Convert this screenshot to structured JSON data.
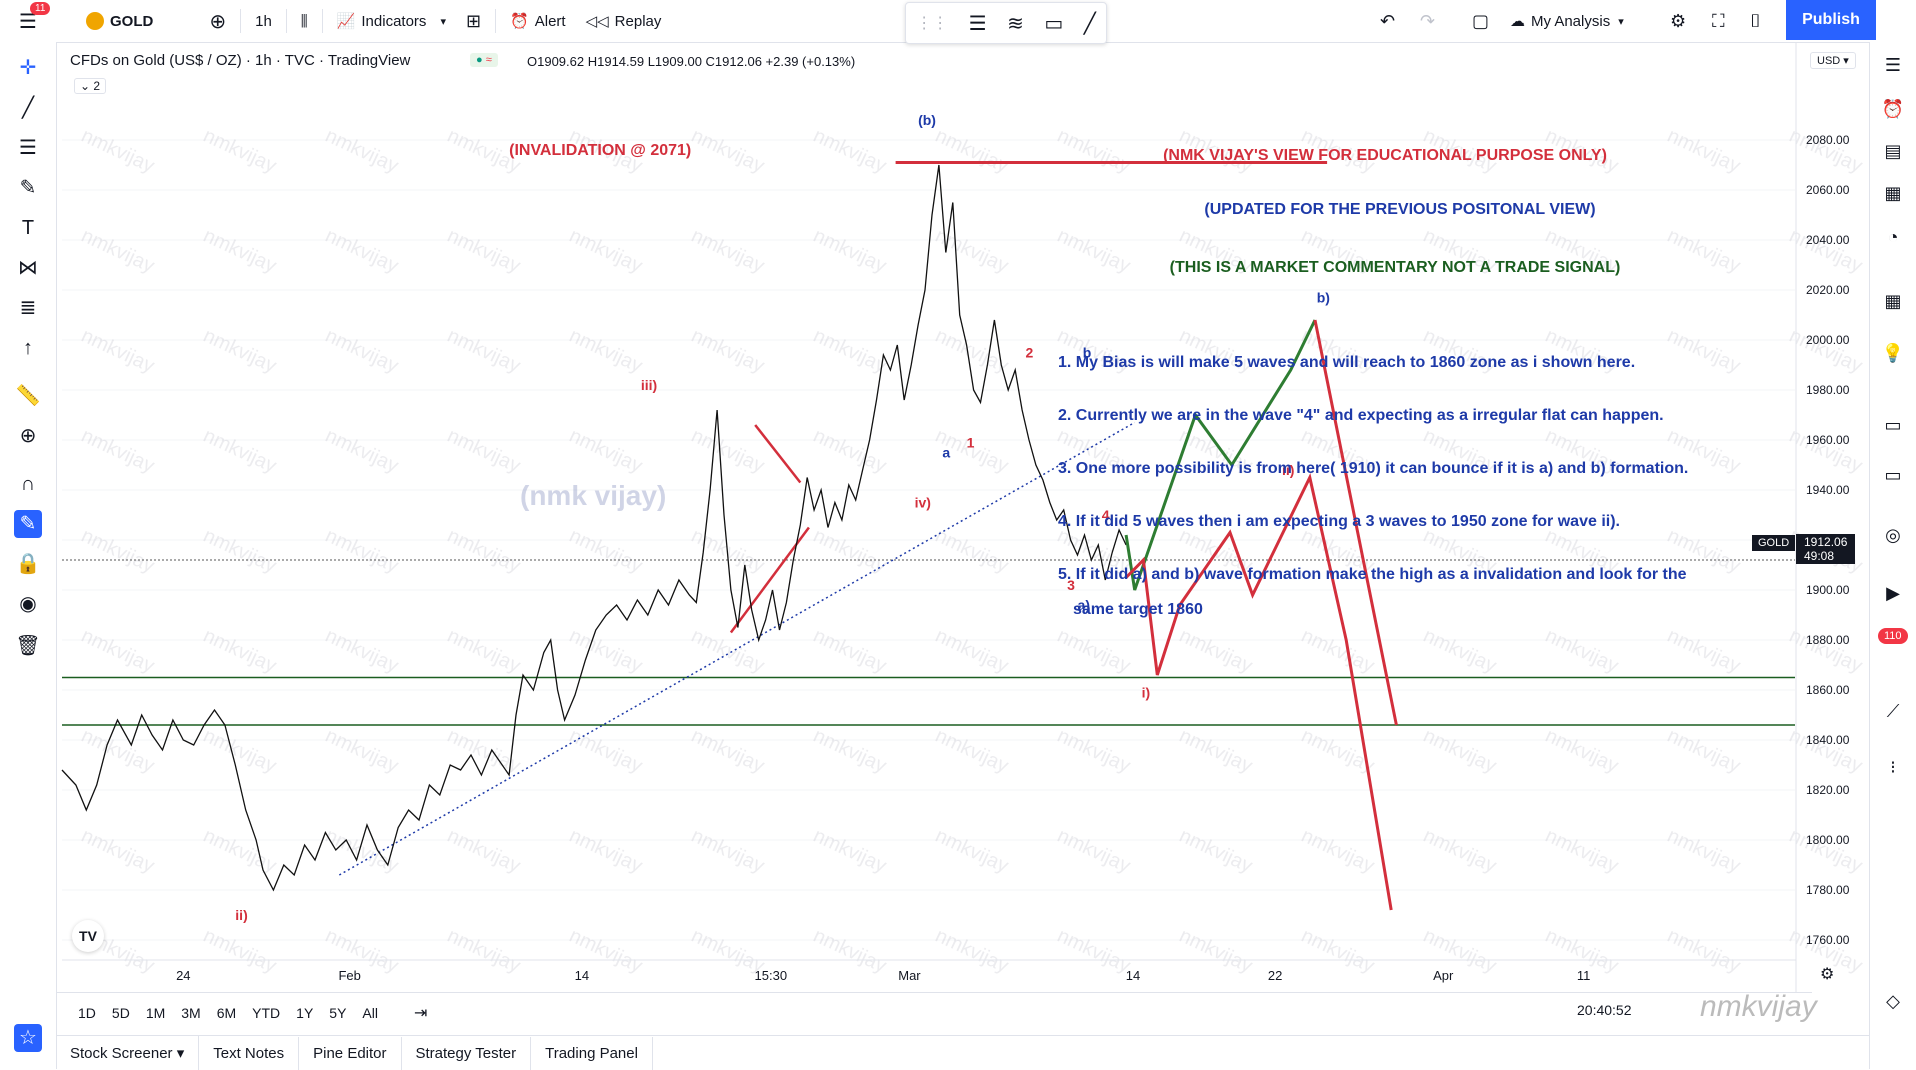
{
  "toolbar": {
    "symbol": "GOLD",
    "notif_count": "11",
    "interval": "1h",
    "indicators": "Indicators",
    "alert": "Alert",
    "replay": "Replay",
    "layout_name": "My Analysis",
    "publish": "Publish"
  },
  "legend": {
    "title": "CFDs on Gold (US$ / OZ) · 1h · TVC · TradingView",
    "ohlc": "O1909.62  H1914.59  L1909.00  C1912.06  +2.39 (+0.13%)",
    "collapse": "2"
  },
  "currency": "USD",
  "price_tag": {
    "symbol": "GOLD",
    "price": "1912.06",
    "countdown": "49:08"
  },
  "side_badge": "110",
  "range_buttons": [
    "1D",
    "5D",
    "1M",
    "3M",
    "6M",
    "YTD",
    "1Y",
    "5Y",
    "All"
  ],
  "clock": "20:40:52",
  "bottom_tabs": [
    "Stock Screener",
    "Text Notes",
    "Pine Editor",
    "Strategy Tester",
    "Trading Panel"
  ],
  "watermark": "(nmk vijay)",
  "signature": "nmkvijay",
  "colors": {
    "up_red": "#d32f3c",
    "green": "#2e7d32",
    "blue": "#1e3aa8",
    "axis_text": "#131722"
  },
  "chart_data": {
    "type": "line",
    "title": "CFDs on Gold (US$ / OZ) · 1h · TVC · TradingView",
    "ylim": [
      1750,
      2100
    ],
    "y_ticks": [
      2080,
      2060,
      2040,
      2020,
      2000,
      1980,
      1960,
      1940,
      1920,
      1900,
      1880,
      1860,
      1840,
      1820,
      1800,
      1780,
      1760
    ],
    "x_tick_labels": [
      {
        "label": "24",
        "x": 0.07
      },
      {
        "label": "Feb",
        "x": 0.166
      },
      {
        "label": "14",
        "x": 0.3
      },
      {
        "label": "15:30",
        "x": 0.409
      },
      {
        "label": "Mar",
        "x": 0.489
      },
      {
        "label": "14",
        "x": 0.618
      },
      {
        "label": "22",
        "x": 0.7
      },
      {
        "label": "Apr",
        "x": 0.797
      },
      {
        "label": "11",
        "x": 0.878
      }
    ],
    "horizontal_lines": [
      {
        "name": "support-1865",
        "y": 1865
      },
      {
        "name": "support-1846",
        "y": 1846
      },
      {
        "name": "current-price",
        "y": 1912
      }
    ],
    "price_series": [
      [
        0.0,
        1828
      ],
      [
        0.008,
        1822
      ],
      [
        0.014,
        1812
      ],
      [
        0.02,
        1822
      ],
      [
        0.026,
        1838
      ],
      [
        0.032,
        1848
      ],
      [
        0.04,
        1838
      ],
      [
        0.046,
        1850
      ],
      [
        0.052,
        1842
      ],
      [
        0.058,
        1836
      ],
      [
        0.064,
        1848
      ],
      [
        0.07,
        1840
      ],
      [
        0.076,
        1838
      ],
      [
        0.082,
        1846
      ],
      [
        0.088,
        1852
      ],
      [
        0.094,
        1846
      ],
      [
        0.1,
        1830
      ],
      [
        0.106,
        1812
      ],
      [
        0.112,
        1800
      ],
      [
        0.116,
        1788
      ],
      [
        0.122,
        1780
      ],
      [
        0.128,
        1790
      ],
      [
        0.134,
        1786
      ],
      [
        0.14,
        1798
      ],
      [
        0.146,
        1792
      ],
      [
        0.152,
        1803
      ],
      [
        0.158,
        1796
      ],
      [
        0.164,
        1800
      ],
      [
        0.17,
        1792
      ],
      [
        0.176,
        1806
      ],
      [
        0.182,
        1796
      ],
      [
        0.188,
        1790
      ],
      [
        0.194,
        1805
      ],
      [
        0.2,
        1812
      ],
      [
        0.206,
        1808
      ],
      [
        0.212,
        1822
      ],
      [
        0.218,
        1818
      ],
      [
        0.224,
        1830
      ],
      [
        0.23,
        1828
      ],
      [
        0.236,
        1834
      ],
      [
        0.242,
        1826
      ],
      [
        0.248,
        1836
      ],
      [
        0.254,
        1830
      ],
      [
        0.258,
        1826
      ],
      [
        0.262,
        1850
      ],
      [
        0.266,
        1866
      ],
      [
        0.272,
        1860
      ],
      [
        0.278,
        1875
      ],
      [
        0.282,
        1880
      ],
      [
        0.286,
        1860
      ],
      [
        0.29,
        1848
      ],
      [
        0.296,
        1858
      ],
      [
        0.302,
        1872
      ],
      [
        0.308,
        1884
      ],
      [
        0.314,
        1890
      ],
      [
        0.32,
        1894
      ],
      [
        0.326,
        1888
      ],
      [
        0.332,
        1896
      ],
      [
        0.338,
        1890
      ],
      [
        0.344,
        1900
      ],
      [
        0.35,
        1894
      ],
      [
        0.356,
        1904
      ],
      [
        0.362,
        1898
      ],
      [
        0.366,
        1895
      ],
      [
        0.37,
        1915
      ],
      [
        0.374,
        1940
      ],
      [
        0.378,
        1972
      ],
      [
        0.382,
        1930
      ],
      [
        0.386,
        1900
      ],
      [
        0.39,
        1885
      ],
      [
        0.394,
        1910
      ],
      [
        0.398,
        1892
      ],
      [
        0.402,
        1880
      ],
      [
        0.406,
        1888
      ],
      [
        0.41,
        1900
      ],
      [
        0.414,
        1884
      ],
      [
        0.418,
        1895
      ],
      [
        0.422,
        1912
      ],
      [
        0.426,
        1926
      ],
      [
        0.43,
        1945
      ],
      [
        0.434,
        1932
      ],
      [
        0.438,
        1940
      ],
      [
        0.442,
        1925
      ],
      [
        0.446,
        1935
      ],
      [
        0.45,
        1928
      ],
      [
        0.454,
        1942
      ],
      [
        0.458,
        1936
      ],
      [
        0.462,
        1948
      ],
      [
        0.466,
        1960
      ],
      [
        0.47,
        1976
      ],
      [
        0.474,
        1994
      ],
      [
        0.478,
        1988
      ],
      [
        0.482,
        1998
      ],
      [
        0.486,
        1976
      ],
      [
        0.49,
        1990
      ],
      [
        0.494,
        2006
      ],
      [
        0.498,
        2020
      ],
      [
        0.502,
        2050
      ],
      [
        0.506,
        2070
      ],
      [
        0.51,
        2035
      ],
      [
        0.514,
        2055
      ],
      [
        0.518,
        2010
      ],
      [
        0.522,
        1998
      ],
      [
        0.526,
        1980
      ],
      [
        0.53,
        1975
      ],
      [
        0.534,
        1990
      ],
      [
        0.538,
        2008
      ],
      [
        0.542,
        1990
      ],
      [
        0.546,
        1980
      ],
      [
        0.55,
        1988
      ],
      [
        0.554,
        1972
      ],
      [
        0.558,
        1960
      ],
      [
        0.562,
        1950
      ],
      [
        0.566,
        1944
      ],
      [
        0.57,
        1935
      ],
      [
        0.574,
        1928
      ],
      [
        0.578,
        1932
      ],
      [
        0.582,
        1920
      ],
      [
        0.586,
        1914
      ],
      [
        0.59,
        1922
      ],
      [
        0.594,
        1912
      ],
      [
        0.598,
        1918
      ],
      [
        0.602,
        1904
      ],
      [
        0.606,
        1915
      ],
      [
        0.61,
        1924
      ],
      [
        0.614,
        1918
      ]
    ],
    "projections": [
      {
        "name": "green-path",
        "color": "green",
        "points": [
          [
            0.614,
            1922
          ],
          [
            0.619,
            1900
          ],
          [
            0.654,
            1970
          ],
          [
            0.675,
            1950
          ],
          [
            0.709,
            1988
          ],
          [
            0.723,
            2008
          ]
        ]
      },
      {
        "name": "red-path",
        "color": "red",
        "points": [
          [
            0.614,
            1905
          ],
          [
            0.624,
            1912
          ],
          [
            0.632,
            1866
          ],
          [
            0.645,
            1894
          ],
          [
            0.674,
            1923
          ],
          [
            0.687,
            1898
          ],
          [
            0.72,
            1945
          ],
          [
            0.741,
            1880
          ],
          [
            0.767,
            1772
          ]
        ]
      },
      {
        "name": "red-high-fall",
        "color": "red",
        "points": [
          [
            0.723,
            2008
          ],
          [
            0.77,
            1846
          ]
        ]
      }
    ],
    "red_trend_segments": [
      {
        "name": "red-wedge-top",
        "points": [
          [
            0.4,
            1966
          ],
          [
            0.426,
            1943
          ]
        ]
      },
      {
        "name": "red-wedge-bottom",
        "points": [
          [
            0.386,
            1883
          ],
          [
            0.431,
            1925
          ]
        ]
      },
      {
        "name": "invalidation-line",
        "points": [
          [
            0.481,
            2071
          ],
          [
            0.73,
            2071
          ]
        ]
      }
    ],
    "dotted_trendline": {
      "points": [
        [
          0.16,
          1786
        ],
        [
          0.619,
          1967
        ]
      ]
    },
    "labels": [
      {
        "text": "(b)",
        "x": 0.494,
        "y": 2086,
        "color": "blue"
      },
      {
        "text": "b)",
        "x": 0.724,
        "y": 2015,
        "color": "blue"
      },
      {
        "text": "ii)",
        "x": 0.1,
        "y": 1768,
        "color": "red"
      },
      {
        "text": "iii)",
        "x": 0.334,
        "y": 1980,
        "color": "red"
      },
      {
        "text": "iv)",
        "x": 0.492,
        "y": 1933,
        "color": "red"
      },
      {
        "text": "2",
        "x": 0.556,
        "y": 1993,
        "color": "red"
      },
      {
        "text": "1",
        "x": 0.522,
        "y": 1957,
        "color": "red"
      },
      {
        "text": "a",
        "x": 0.508,
        "y": 1953,
        "color": "blue"
      },
      {
        "text": "b",
        "x": 0.589,
        "y": 1993,
        "color": "blue"
      },
      {
        "text": "4",
        "x": 0.6,
        "y": 1928,
        "color": "red"
      },
      {
        "text": "3",
        "x": 0.58,
        "y": 1900,
        "color": "red"
      },
      {
        "text": "a)",
        "x": 0.586,
        "y": 1892,
        "color": "blue"
      },
      {
        "text": "i)",
        "x": 0.623,
        "y": 1857,
        "color": "red"
      },
      {
        "text": "ii)",
        "x": 0.704,
        "y": 1946,
        "color": "red"
      },
      {
        "text": "(INVALIDATION @ 2071)",
        "x": 0.258,
        "y": 2074,
        "color": "red"
      }
    ],
    "commentary": {
      "title1": "(NMK VIJAY'S VIEW FOR EDUCATIONAL PURPOSE ONLY)",
      "title2": "(UPDATED FOR THE PREVIOUS POSITONAL VIEW)",
      "title3": "(THIS IS A MARKET COMMENTARY NOT A TRADE SIGNAL)",
      "points": [
        "1. My Bias is will make 5 waves and will reach to 1860 zone as i shown here.",
        "2. Currently we are in the wave \"4\" and expecting as a irregular flat can happen.",
        "3. One more possibility is from here( 1910) it can bounce if it is a) and b) formation.",
        "4. If it did 5 waves then i am expecting a 3 waves to 1950 zone for wave ii).",
        "5. If it did a) and b) wave formation make the high as a invalidation and look for the",
        "same target 1860"
      ]
    }
  }
}
